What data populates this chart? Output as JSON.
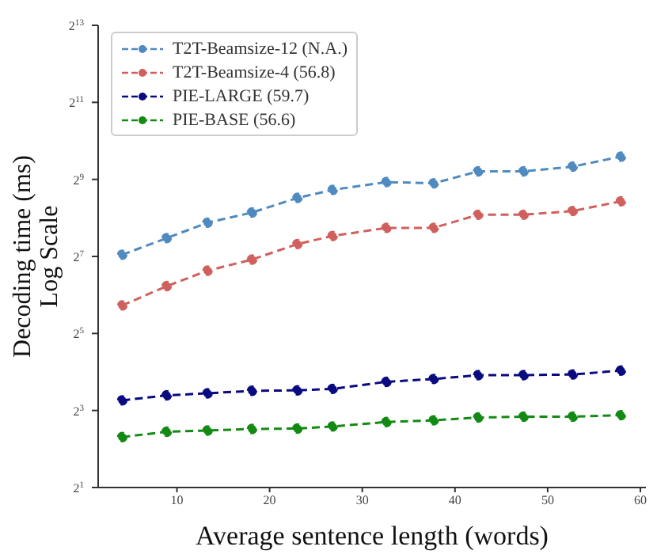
{
  "chart_data": {
    "type": "line",
    "xlabel": "Average sentence length (words)",
    "ylabel": "Decoding time (ms)\nLog Scale",
    "x": [
      4.1,
      8.9,
      13.3,
      18.1,
      23,
      26.8,
      32.6,
      37.7,
      42.5,
      47.4,
      52.7,
      57.9
    ],
    "series": [
      {
        "name": "T2T-Beamsize-12 (N.A.)",
        "color": "#4f8ac0",
        "values": [
          132,
          178,
          235,
          282,
          367,
          424,
          488,
          477,
          592,
          592,
          644,
          771
        ]
      },
      {
        "name": "T2T-Beamsize-4 (56.8)",
        "color": "#d0605e",
        "values": [
          53,
          75,
          99,
          121,
          160,
          185,
          214,
          214,
          271,
          271,
          290,
          345
        ]
      },
      {
        "name": "PIE-LARGE (59.7)",
        "color": "#0a0a80",
        "values": [
          9.6,
          10.5,
          10.9,
          11.4,
          11.5,
          11.8,
          13.4,
          14.1,
          15.1,
          15.1,
          15.3,
          16.4
        ]
      },
      {
        "name": "PIE-BASE (56.6)",
        "color": "#138a13",
        "values": [
          4.96,
          5.46,
          5.58,
          5.74,
          5.78,
          6.0,
          6.5,
          6.7,
          7.05,
          7.15,
          7.15,
          7.35
        ]
      }
    ],
    "log": "y",
    "xlim": [
      1.5,
      60.6
    ],
    "xticks": [
      10,
      20,
      30,
      40,
      50,
      60
    ],
    "ylim": [
      2,
      8192
    ],
    "yticks": [
      {
        "value": 2,
        "label": "2$^{1}$"
      },
      {
        "value": 8,
        "label": "2$^{3}$"
      },
      {
        "value": 32,
        "label": "2$^{5}$"
      },
      {
        "value": 128,
        "label": "2$^{7}$"
      },
      {
        "value": 512,
        "label": "2$^{9}$"
      },
      {
        "value": 2048,
        "label": "2$^{11}$"
      },
      {
        "value": 8192,
        "label": "2$^{13}$"
      }
    ],
    "legend": "top left",
    "marker": "circle",
    "line_style": "dashed",
    "grid": false
  }
}
